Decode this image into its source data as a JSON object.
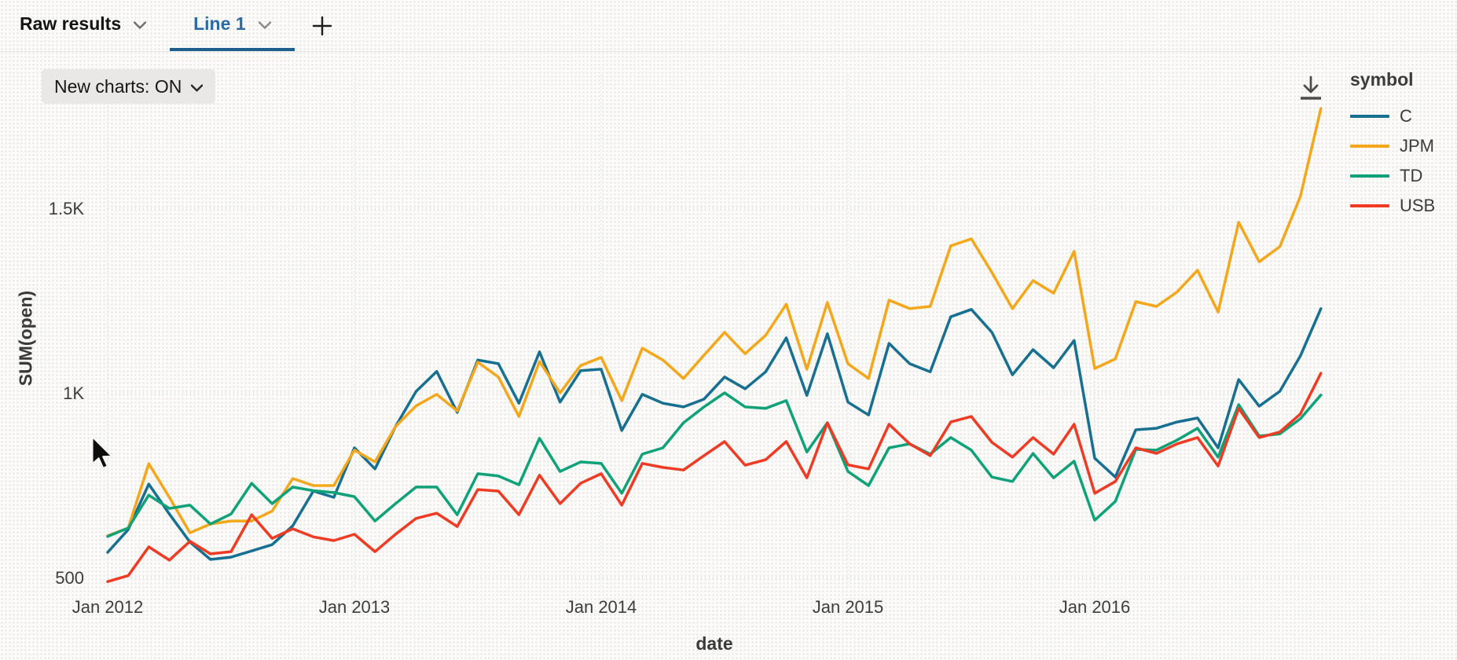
{
  "tab_bar": {
    "tabs": [
      {
        "label": "Raw results",
        "active": false
      },
      {
        "label": "Line 1",
        "active": true
      }
    ]
  },
  "toolbar": {
    "new_charts_button": "New charts: ON"
  },
  "legend": {
    "title": "symbol",
    "items": [
      {
        "label": "C",
        "color": "#176f91"
      },
      {
        "label": "JPM",
        "color": "#f5a71c"
      },
      {
        "label": "TD",
        "color": "#0fa279"
      },
      {
        "label": "USB",
        "color": "#ef3b24"
      }
    ]
  },
  "chart_data": {
    "type": "line",
    "title": "",
    "xlabel": "date",
    "ylabel": "SUM(open)",
    "legend_position": "right",
    "grid": "dotted",
    "ylim": [
      460,
      1800
    ],
    "y_ticks": [
      {
        "label": "500",
        "value": 500
      },
      {
        "label": "1K",
        "value": 1000
      },
      {
        "label": "1.5K",
        "value": 1500
      }
    ],
    "x_ticks": [
      {
        "label": "Jan 2012",
        "year_index": 0
      },
      {
        "label": "Jan 2013",
        "year_index": 1
      },
      {
        "label": "Jan 2014",
        "year_index": 2
      },
      {
        "label": "Jan 2015",
        "year_index": 3
      },
      {
        "label": "Jan 2016",
        "year_index": 4
      }
    ],
    "x": [
      "2012-01",
      "2012-02",
      "2012-03",
      "2012-04",
      "2012-05",
      "2012-06",
      "2012-07",
      "2012-08",
      "2012-09",
      "2012-10",
      "2012-11",
      "2012-12",
      "2013-01",
      "2013-02",
      "2013-03",
      "2013-04",
      "2013-05",
      "2013-06",
      "2013-07",
      "2013-08",
      "2013-09",
      "2013-10",
      "2013-11",
      "2013-12",
      "2014-01",
      "2014-02",
      "2014-03",
      "2014-04",
      "2014-05",
      "2014-06",
      "2014-07",
      "2014-08",
      "2014-09",
      "2014-10",
      "2014-11",
      "2014-12",
      "2015-01",
      "2015-02",
      "2015-03",
      "2015-04",
      "2015-05",
      "2015-06",
      "2015-07",
      "2015-08",
      "2015-09",
      "2015-10",
      "2015-11",
      "2015-12",
      "2016-01",
      "2016-02",
      "2016-03",
      "2016-04",
      "2016-05",
      "2016-06",
      "2016-07",
      "2016-08",
      "2016-09",
      "2016-10",
      "2016-11",
      "2016-12"
    ],
    "series": [
      {
        "name": "C",
        "color": "#176f91",
        "values": [
          568,
          630,
          753,
          672,
          596,
          549,
          555,
          572,
          589,
          640,
          734,
          717,
          851,
          794,
          909,
          1004,
          1058,
          947,
          1089,
          1079,
          972,
          1111,
          975,
          1060,
          1064,
          898,
          996,
          972,
          962,
          983,
          1043,
          1011,
          1057,
          1149,
          993,
          1160,
          975,
          940,
          1134,
          1079,
          1057,
          1206,
          1226,
          1164,
          1049,
          1117,
          1068,
          1142,
          823,
          772,
          900,
          904,
          921,
          932,
          851,
          1036,
          964,
          1004,
          1100,
          1228
        ]
      },
      {
        "name": "JPM",
        "color": "#f5a71c",
        "values": [
          613,
          634,
          808,
          717,
          621,
          645,
          653,
          653,
          680,
          768,
          749,
          749,
          845,
          813,
          909,
          965,
          996,
          951,
          1083,
          1043,
          936,
          1085,
          1000,
          1074,
          1096,
          979,
          1121,
          1089,
          1039,
          1102,
          1164,
          1106,
          1156,
          1240,
          1064,
          1245,
          1079,
          1039,
          1251,
          1228,
          1234,
          1398,
          1417,
          1326,
          1228,
          1304,
          1270,
          1383,
          1066,
          1092,
          1247,
          1234,
          1273,
          1332,
          1219,
          1462,
          1355,
          1396,
          1532,
          1770
        ]
      },
      {
        "name": "TD",
        "color": "#0fa279",
        "values": [
          611,
          634,
          723,
          687,
          696,
          645,
          672,
          755,
          700,
          745,
          735,
          730,
          719,
          653,
          700,
          745,
          745,
          670,
          781,
          775,
          751,
          877,
          787,
          813,
          809,
          728,
          834,
          851,
          919,
          962,
          1000,
          962,
          958,
          979,
          840,
          919,
          787,
          749,
          851,
          862,
          834,
          879,
          845,
          772,
          760,
          836,
          770,
          815,
          655,
          706,
          847,
          845,
          872,
          904,
          826,
          968,
          883,
          889,
          930,
          994
        ]
      },
      {
        "name": "USB",
        "color": "#ef3b24",
        "values": [
          489,
          505,
          583,
          547,
          598,
          564,
          570,
          670,
          606,
          632,
          610,
          600,
          617,
          570,
          617,
          660,
          674,
          638,
          738,
          734,
          670,
          777,
          700,
          755,
          781,
          696,
          809,
          798,
          791,
          830,
          868,
          804,
          819,
          868,
          770,
          919,
          805,
          794,
          915,
          862,
          830,
          921,
          936,
          866,
          826,
          879,
          834,
          915,
          728,
          760,
          851,
          836,
          862,
          879,
          802,
          958,
          879,
          894,
          943,
          1053
        ]
      }
    ]
  }
}
